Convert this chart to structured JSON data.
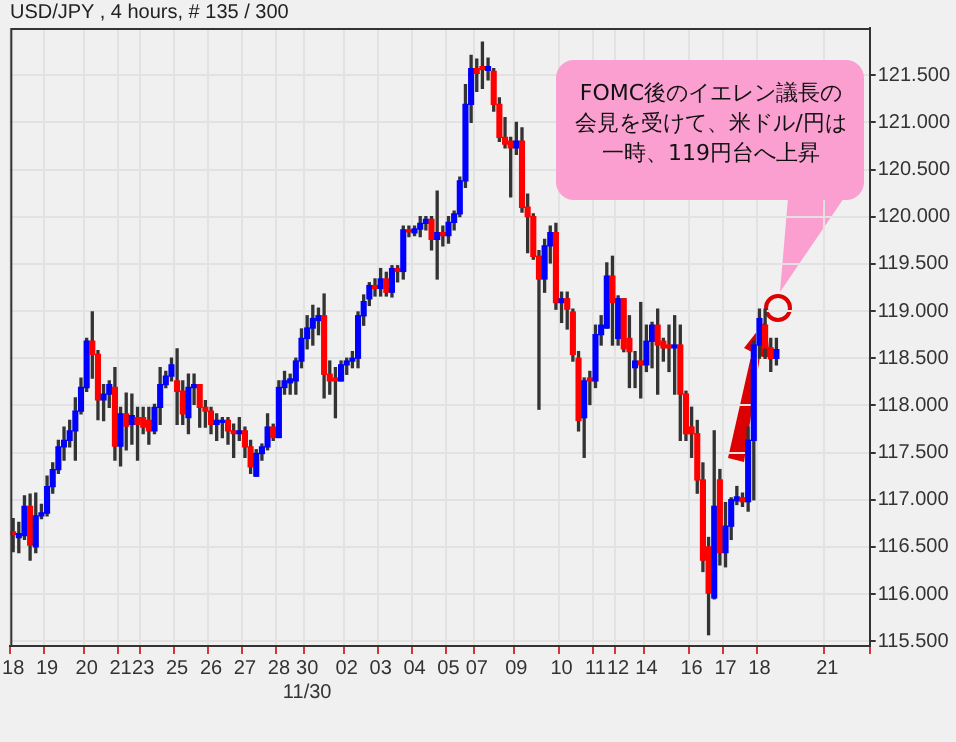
{
  "chart_data": {
    "type": "candlestick",
    "title": "USD/JPY , 4 hours, # 135 / 300",
    "annotations": [
      "FOMC後のイエレン議長の会見を受けて、米ドル/円は一時、119円台へ上昇"
    ],
    "categories": [
      "18",
      null,
      null,
      null,
      null,
      null,
      "19",
      null,
      null,
      null,
      null,
      null,
      null,
      "20",
      null,
      null,
      null,
      null,
      null,
      "21",
      null,
      null,
      null,
      "23",
      null,
      null,
      null,
      null,
      null,
      "25",
      null,
      null,
      null,
      null,
      null,
      "26",
      null,
      null,
      null,
      null,
      null,
      "27",
      null,
      null,
      null,
      null,
      null,
      "28",
      null,
      null,
      null,
      null,
      "30\n11/30",
      null,
      null,
      null,
      null,
      null,
      null,
      "02",
      null,
      null,
      null,
      null,
      null,
      "03",
      null,
      null,
      null,
      null,
      null,
      "04",
      null,
      null,
      null,
      null,
      null,
      "05",
      null,
      null,
      null,
      null,
      "07",
      null,
      null,
      null,
      null,
      null,
      null,
      "09",
      null,
      null,
      null,
      null,
      null,
      null,
      null,
      "10",
      null,
      null,
      null,
      null,
      null,
      "11",
      null,
      null,
      null,
      "12",
      null,
      null,
      null,
      null,
      "14",
      null,
      null,
      null,
      null,
      null,
      null,
      null,
      "16",
      null,
      null,
      null,
      null,
      null,
      "17",
      null,
      null,
      null,
      null,
      null,
      "18",
      null,
      null,
      null,
      null,
      null,
      null,
      null,
      null,
      null,
      null,
      null,
      "21",
      null,
      null,
      null,
      null,
      null,
      null,
      null
    ],
    "ohlc": [
      [
        116.66,
        116.8,
        116.45,
        116.63
      ],
      [
        116.6,
        116.76,
        116.44,
        116.64
      ],
      [
        116.62,
        117.04,
        116.58,
        116.93
      ],
      [
        116.93,
        117.06,
        116.36,
        116.52
      ],
      [
        116.5,
        117.07,
        116.44,
        116.83
      ],
      [
        116.83,
        116.95,
        116.8,
        116.86
      ],
      [
        116.86,
        117.25,
        116.83,
        117.14
      ],
      [
        117.14,
        117.39,
        117.07,
        117.32
      ],
      [
        117.32,
        117.63,
        117.28,
        117.56
      ],
      [
        117.56,
        117.77,
        117.42,
        117.63
      ],
      [
        117.63,
        117.84,
        117.56,
        117.73
      ],
      [
        117.73,
        118.08,
        117.42,
        117.94
      ],
      [
        117.94,
        118.29,
        117.91,
        118.19
      ],
      [
        118.19,
        118.71,
        118.15,
        118.68
      ],
      [
        118.68,
        118.99,
        118.29,
        118.54
      ],
      [
        118.54,
        118.58,
        117.85,
        118.06
      ],
      [
        118.06,
        118.22,
        117.84,
        118.12
      ],
      [
        118.12,
        118.26,
        117.98,
        118.22
      ],
      [
        118.19,
        118.4,
        117.42,
        117.57
      ],
      [
        117.57,
        117.98,
        117.36,
        117.91
      ],
      [
        117.91,
        118.13,
        117.53,
        117.78
      ],
      [
        117.8,
        118.12,
        117.59,
        117.89
      ],
      [
        117.87,
        117.98,
        117.42,
        117.8
      ],
      [
        117.87,
        117.98,
        117.7,
        117.77
      ],
      [
        117.84,
        117.98,
        117.59,
        117.73
      ],
      [
        117.73,
        118.01,
        117.7,
        117.98
      ],
      [
        117.98,
        118.4,
        117.8,
        118.22
      ],
      [
        118.22,
        118.36,
        118.19,
        118.31
      ],
      [
        118.31,
        118.5,
        118.26,
        118.43
      ],
      [
        118.26,
        118.6,
        117.8,
        118.15
      ],
      [
        118.15,
        118.26,
        117.8,
        117.91
      ],
      [
        117.87,
        118.33,
        117.7,
        118.19
      ],
      [
        118.19,
        118.33,
        118.01,
        118.22
      ],
      [
        118.22,
        118.22,
        117.77,
        117.98
      ],
      [
        117.98,
        118.05,
        117.77,
        117.94
      ],
      [
        117.94,
        117.98,
        117.7,
        117.8
      ],
      [
        117.8,
        117.91,
        117.63,
        117.84
      ],
      [
        117.82,
        117.87,
        117.66,
        117.84
      ],
      [
        117.84,
        117.87,
        117.59,
        117.73
      ],
      [
        117.73,
        117.8,
        117.45,
        117.7
      ],
      [
        117.7,
        117.87,
        117.63,
        117.73
      ],
      [
        117.73,
        117.77,
        117.45,
        117.56
      ],
      [
        117.56,
        117.63,
        117.28,
        117.35
      ],
      [
        117.25,
        117.53,
        117.25,
        117.49
      ],
      [
        117.49,
        117.59,
        117.42,
        117.56
      ],
      [
        117.56,
        117.91,
        117.53,
        117.77
      ],
      [
        117.77,
        117.8,
        117.63,
        117.66
      ],
      [
        117.66,
        118.26,
        117.66,
        118.19
      ],
      [
        118.19,
        118.36,
        118.12,
        118.26
      ],
      [
        118.24,
        118.33,
        118.12,
        118.28
      ],
      [
        118.26,
        118.5,
        118.12,
        118.47
      ],
      [
        118.47,
        118.81,
        118.4,
        118.71
      ],
      [
        118.71,
        118.95,
        118.6,
        118.82
      ],
      [
        118.82,
        119.06,
        118.64,
        118.92
      ],
      [
        118.9,
        119.03,
        118.75,
        118.95
      ],
      [
        118.95,
        119.18,
        118.08,
        118.33
      ],
      [
        118.33,
        118.47,
        118.12,
        118.26
      ],
      [
        118.29,
        118.4,
        117.87,
        118.26
      ],
      [
        118.26,
        118.47,
        118.26,
        118.43
      ],
      [
        118.43,
        118.5,
        118.33,
        118.47
      ],
      [
        118.47,
        118.57,
        118.4,
        118.5
      ],
      [
        118.5,
        118.99,
        118.4,
        118.95
      ],
      [
        118.95,
        119.17,
        118.85,
        119.1
      ],
      [
        119.13,
        119.3,
        119.06,
        119.27
      ],
      [
        119.27,
        119.34,
        119.16,
        119.24
      ],
      [
        119.24,
        119.45,
        119.16,
        119.34
      ],
      [
        119.34,
        119.41,
        119.16,
        119.2
      ],
      [
        119.2,
        119.48,
        119.15,
        119.45
      ],
      [
        119.45,
        119.48,
        119.31,
        119.42
      ],
      [
        119.42,
        119.9,
        119.34,
        119.86
      ],
      [
        119.86,
        119.9,
        119.79,
        119.84
      ],
      [
        119.83,
        119.9,
        119.8,
        119.87
      ],
      [
        119.87,
        120.0,
        119.79,
        119.93
      ],
      [
        119.93,
        120.0,
        119.86,
        119.97
      ],
      [
        119.97,
        120.0,
        119.65,
        119.76
      ],
      [
        119.76,
        120.27,
        119.34,
        119.83
      ],
      [
        119.83,
        119.9,
        119.69,
        119.8
      ],
      [
        119.8,
        120.0,
        119.72,
        119.94
      ],
      [
        119.94,
        120.06,
        119.86,
        120.03
      ],
      [
        120.03,
        120.42,
        120.0,
        120.38
      ],
      [
        120.38,
        121.4,
        120.31,
        121.19
      ],
      [
        121.19,
        121.71,
        121.0,
        121.57
      ],
      [
        121.57,
        121.67,
        121.33,
        121.52
      ],
      [
        121.59,
        121.85,
        121.36,
        121.56
      ],
      [
        121.55,
        121.68,
        121.45,
        121.59
      ],
      [
        121.54,
        121.57,
        121.12,
        121.19
      ],
      [
        121.19,
        121.26,
        120.8,
        120.84
      ],
      [
        120.84,
        121.05,
        120.73,
        120.77
      ],
      [
        120.8,
        120.84,
        120.21,
        120.73
      ],
      [
        120.73,
        121.0,
        120.66,
        120.8
      ],
      [
        120.8,
        120.94,
        120.05,
        120.1
      ],
      [
        120.1,
        120.24,
        119.62,
        120.0
      ],
      [
        120.0,
        120.03,
        119.55,
        119.58
      ],
      [
        119.58,
        119.64,
        117.96,
        119.34
      ],
      [
        119.34,
        119.76,
        119.2,
        119.69
      ],
      [
        119.69,
        119.9,
        119.51,
        119.83
      ],
      [
        119.83,
        119.93,
        119.02,
        119.09
      ],
      [
        119.09,
        119.2,
        118.88,
        119.13
      ],
      [
        119.13,
        119.2,
        118.81,
        119.02
      ],
      [
        118.99,
        119.02,
        118.47,
        118.54
      ],
      [
        118.5,
        118.57,
        117.73,
        117.84
      ],
      [
        117.87,
        118.29,
        117.45,
        118.26
      ],
      [
        118.29,
        118.36,
        118.01,
        118.26
      ],
      [
        118.26,
        118.85,
        118.19,
        118.75
      ],
      [
        118.75,
        118.95,
        118.64,
        118.85
      ],
      [
        118.82,
        119.51,
        118.82,
        119.37
      ],
      [
        119.37,
        119.58,
        118.64,
        119.09
      ],
      [
        118.71,
        119.16,
        118.64,
        119.13
      ],
      [
        119.13,
        119.13,
        118.57,
        118.6
      ],
      [
        118.71,
        118.95,
        118.19,
        118.57
      ],
      [
        118.4,
        118.57,
        118.19,
        118.47
      ],
      [
        118.47,
        119.09,
        118.08,
        118.43
      ],
      [
        118.43,
        118.85,
        118.36,
        118.68
      ],
      [
        118.68,
        118.88,
        118.4,
        118.85
      ],
      [
        118.85,
        119.02,
        118.12,
        118.64
      ],
      [
        118.68,
        118.71,
        118.47,
        118.61
      ],
      [
        118.64,
        118.85,
        118.36,
        118.61
      ],
      [
        118.61,
        118.95,
        118.12,
        118.64
      ],
      [
        118.64,
        118.85,
        117.63,
        118.12
      ],
      [
        118.12,
        118.15,
        117.63,
        117.7
      ],
      [
        117.77,
        117.98,
        117.45,
        117.7
      ],
      [
        117.7,
        117.84,
        117.07,
        117.21
      ],
      [
        117.21,
        117.39,
        116.24,
        116.36
      ],
      [
        116.5,
        116.6,
        115.57,
        116.01
      ],
      [
        115.96,
        117.73,
        115.95,
        116.93
      ],
      [
        117.21,
        117.32,
        116.31,
        116.44
      ],
      [
        116.44,
        116.97,
        116.29,
        116.72
      ],
      [
        116.72,
        117.02,
        116.58,
        117.0
      ],
      [
        116.99,
        117.14,
        116.95,
        117.03
      ],
      [
        117.02,
        117.07,
        116.93,
        116.98
      ],
      [
        116.98,
        117.77,
        116.88,
        117.63
      ],
      [
        117.63,
        118.68,
        117.0,
        118.64
      ],
      [
        118.64,
        119.02,
        118.5,
        118.92
      ],
      [
        118.85,
        119.02,
        118.5,
        118.61
      ],
      [
        118.61,
        118.71,
        118.36,
        118.5
      ],
      [
        118.5,
        118.71,
        118.43,
        118.59
      ],
      null,
      null,
      null,
      null,
      null,
      null,
      null,
      null,
      null,
      null,
      null,
      null,
      null,
      null,
      null,
      null
    ],
    "colors": [
      "#ff0000",
      "#0000ff",
      "#0000ff",
      "#ff0000",
      "#0000ff",
      "#0000ff",
      "#0000ff",
      "#0000ff",
      "#0000ff",
      "#0000ff",
      "#0000ff",
      "#0000ff",
      "#0000ff",
      "#0000ff",
      "#ff0000",
      "#ff0000",
      "#0000ff",
      "#0000ff",
      "#ff0000",
      "#0000ff",
      "#ff0000",
      "#0000ff",
      "#ff0000",
      "#ff0000",
      "#ff0000",
      "#0000ff",
      "#0000ff",
      "#0000ff",
      "#0000ff",
      "#ff0000",
      "#ff0000",
      "#0000ff",
      "#0000ff",
      "#ff0000",
      "#ff0000",
      "#ff0000",
      "#0000ff",
      "#0000ff",
      "#ff0000",
      "#ff0000",
      "#0000ff",
      "#ff0000",
      "#ff0000",
      "#0000ff",
      "#0000ff",
      "#0000ff",
      "#ff0000",
      "#0000ff",
      "#0000ff",
      "#0000ff",
      "#0000ff",
      "#0000ff",
      "#0000ff",
      "#0000ff",
      "#0000ff",
      "#ff0000",
      "#ff0000",
      "#ff0000",
      "#0000ff",
      "#0000ff",
      "#0000ff",
      "#0000ff",
      "#0000ff",
      "#0000ff",
      "#ff0000",
      "#0000ff",
      "#ff0000",
      "#0000ff",
      "#ff0000",
      "#0000ff",
      "#ff0000",
      "#0000ff",
      "#0000ff",
      "#0000ff",
      "#ff0000",
      "#0000ff",
      "#ff0000",
      "#0000ff",
      "#0000ff",
      "#0000ff",
      "#0000ff",
      "#0000ff",
      "#ff0000",
      "#ff0000",
      "#0000ff",
      "#ff0000",
      "#ff0000",
      "#ff0000",
      "#ff0000",
      "#0000ff",
      "#ff0000",
      "#ff0000",
      "#ff0000",
      "#ff0000",
      "#0000ff",
      "#0000ff",
      "#ff0000",
      "#0000ff",
      "#ff0000",
      "#ff0000",
      "#ff0000",
      "#0000ff",
      "#ff0000",
      "#0000ff",
      "#0000ff",
      "#0000ff",
      "#ff0000",
      "#0000ff",
      "#ff0000",
      "#ff0000",
      "#0000ff",
      "#ff0000",
      "#0000ff",
      "#0000ff",
      "#ff0000",
      "#ff0000",
      "#ff0000",
      "#0000ff",
      "#ff0000",
      "#ff0000",
      "#ff0000",
      "#ff0000",
      "#ff0000",
      "#ff0000",
      "#0000ff",
      "#ff0000",
      "#0000ff",
      "#0000ff",
      "#0000ff",
      "#ff0000",
      "#0000ff",
      "#0000ff",
      "#0000ff",
      "#ff0000",
      "#ff0000",
      "#0000ff",
      null,
      null,
      null,
      null,
      null,
      null,
      null,
      null,
      null,
      null,
      null,
      null,
      null,
      null,
      null,
      null
    ],
    "ylim": [
      115.45,
      122.0
    ],
    "yticks": [
      {
        "value": 115.5,
        "label": "115.500"
      },
      {
        "value": 116.0,
        "label": "116.000"
      },
      {
        "value": 116.5,
        "label": "116.500"
      },
      {
        "value": 117.0,
        "label": "117.000"
      },
      {
        "value": 117.5,
        "label": "117.500"
      },
      {
        "value": 118.0,
        "label": "118.000"
      },
      {
        "value": 118.5,
        "label": "118.500"
      },
      {
        "value": 119.0,
        "label": "119.000"
      },
      {
        "value": 119.5,
        "label": "119.500"
      },
      {
        "value": 120.0,
        "label": "120.000"
      },
      {
        "value": 120.5,
        "label": "120.500"
      },
      {
        "value": 121.0,
        "label": "121.000"
      },
      {
        "value": 121.5,
        "label": "121.500"
      }
    ],
    "grid": true
  }
}
